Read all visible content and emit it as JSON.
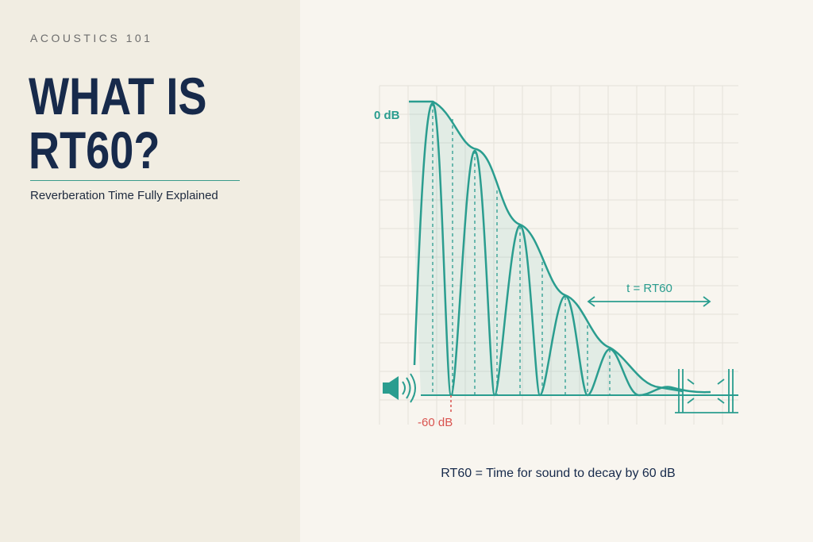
{
  "header": {
    "kicker": "ACOUSTICS 101",
    "title_lines": [
      "WHAT IS",
      "RT60?"
    ],
    "subtitle": "Reverberation Time Fully Explained"
  },
  "diagram": {
    "top_label": "0 dB",
    "bottom_label": "-60 dB",
    "span_label": "t = RT60",
    "caption": "RT60 = Time for sound to decay by 60 dB"
  }
}
